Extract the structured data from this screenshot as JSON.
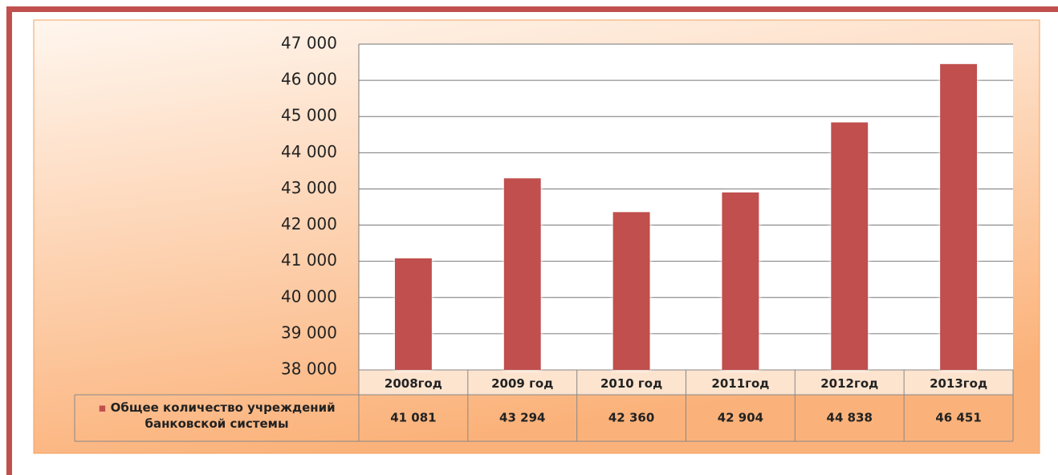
{
  "chart_data": {
    "type": "bar",
    "categories": [
      "2008год",
      "2009 год",
      "2010 год",
      "2011год",
      "2012год",
      "2013год"
    ],
    "series": [
      {
        "name": "Общее количество учреждений банковской системы",
        "color": "#c0504d",
        "values": [
          41081,
          43294,
          42360,
          42904,
          44838,
          46451
        ],
        "value_labels": [
          "41 081",
          "43 294",
          "42 360",
          "42 904",
          "44 838",
          "46 451"
        ]
      }
    ],
    "ylim": [
      38000,
      47000
    ],
    "yticks": [
      {
        "value": 38000,
        "label": "38 000"
      },
      {
        "value": 39000,
        "label": "39 000"
      },
      {
        "value": 40000,
        "label": "40 000"
      },
      {
        "value": 41000,
        "label": "41 000"
      },
      {
        "value": 42000,
        "label": "42 000"
      },
      {
        "value": 43000,
        "label": "43 000"
      },
      {
        "value": 44000,
        "label": "44 000"
      },
      {
        "value": 45000,
        "label": "45 000"
      },
      {
        "value": 46000,
        "label": "46 000"
      },
      {
        "value": 47000,
        "label": "47 000"
      }
    ],
    "grid": true
  }
}
